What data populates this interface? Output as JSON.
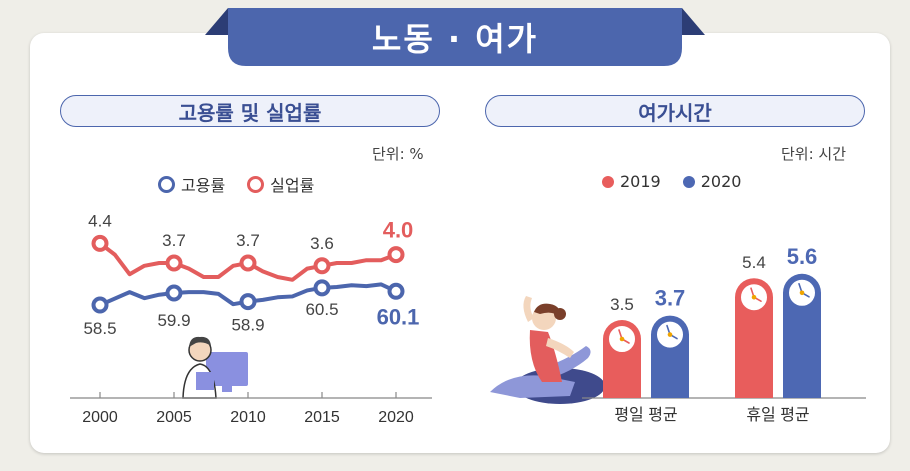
{
  "header": {
    "title": "노동 · 여가"
  },
  "colors": {
    "employment": "#4c66ad",
    "unemployment": "#e35d5d",
    "y2019": "#e85d5c",
    "y2020": "#4d68b3",
    "axis": "#888888"
  },
  "panels": {
    "left": {
      "title": "고용률 및 실업률",
      "unit": "단위: %",
      "legend": [
        "고용률",
        "실업률"
      ]
    },
    "right": {
      "title": "여가시간",
      "unit": "단위: 시간",
      "legend": [
        "2019",
        "2020"
      ]
    }
  },
  "chart_data": [
    {
      "type": "line",
      "title": "고용률 및 실업률",
      "x_ticks": [
        "2000",
        "2005",
        "2010",
        "2015",
        "2020"
      ],
      "series": [
        {
          "name": "고용률",
          "labeled": [
            [
              2000,
              58.5
            ],
            [
              2005,
              59.9
            ],
            [
              2010,
              58.9
            ],
            [
              2015,
              60.5
            ],
            [
              2020,
              60.1
            ]
          ],
          "points": [
            [
              2000,
              58.5
            ],
            [
              2002,
              60.0
            ],
            [
              2003,
              59.3
            ],
            [
              2004,
              59.7
            ],
            [
              2005,
              59.9
            ],
            [
              2006,
              60.0
            ],
            [
              2007,
              60.0
            ],
            [
              2008,
              59.8
            ],
            [
              2009,
              58.6
            ],
            [
              2010,
              58.9
            ],
            [
              2011,
              59.1
            ],
            [
              2012,
              59.4
            ],
            [
              2013,
              59.5
            ],
            [
              2014,
              60.2
            ],
            [
              2015,
              60.5
            ],
            [
              2016,
              60.6
            ],
            [
              2017,
              60.8
            ],
            [
              2018,
              60.7
            ],
            [
              2019,
              60.9
            ],
            [
              2020,
              60.1
            ]
          ]
        },
        {
          "name": "실업률",
          "labeled": [
            [
              2000,
              4.4
            ],
            [
              2005,
              3.7
            ],
            [
              2010,
              3.7
            ],
            [
              2015,
              3.6
            ],
            [
              2020,
              4.0
            ]
          ],
          "points": [
            [
              2000,
              4.4
            ],
            [
              2001,
              4.0
            ],
            [
              2002,
              3.3
            ],
            [
              2003,
              3.6
            ],
            [
              2004,
              3.7
            ],
            [
              2005,
              3.7
            ],
            [
              2006,
              3.5
            ],
            [
              2007,
              3.2
            ],
            [
              2008,
              3.2
            ],
            [
              2009,
              3.6
            ],
            [
              2010,
              3.7
            ],
            [
              2011,
              3.4
            ],
            [
              2012,
              3.2
            ],
            [
              2013,
              3.1
            ],
            [
              2014,
              3.5
            ],
            [
              2015,
              3.6
            ],
            [
              2016,
              3.7
            ],
            [
              2017,
              3.7
            ],
            [
              2018,
              3.8
            ],
            [
              2019,
              3.8
            ],
            [
              2020,
              4.0
            ]
          ]
        }
      ]
    },
    {
      "type": "bar",
      "title": "여가시간",
      "categories": [
        "평일 평균",
        "휴일 평균"
      ],
      "series": [
        {
          "name": "2019",
          "values": [
            3.5,
            5.4
          ]
        },
        {
          "name": "2020",
          "values": [
            3.7,
            5.6
          ]
        }
      ]
    }
  ]
}
